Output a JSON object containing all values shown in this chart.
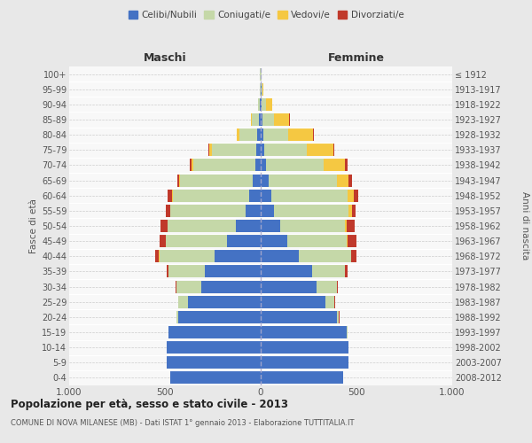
{
  "age_groups": [
    "0-4",
    "5-9",
    "10-14",
    "15-19",
    "20-24",
    "25-29",
    "30-34",
    "35-39",
    "40-44",
    "45-49",
    "50-54",
    "55-59",
    "60-64",
    "65-69",
    "70-74",
    "75-79",
    "80-84",
    "85-89",
    "90-94",
    "95-99",
    "100+"
  ],
  "birth_years": [
    "2008-2012",
    "2003-2007",
    "1998-2002",
    "1993-1997",
    "1988-1992",
    "1983-1987",
    "1978-1982",
    "1973-1977",
    "1968-1972",
    "1963-1967",
    "1958-1962",
    "1953-1957",
    "1948-1952",
    "1943-1947",
    "1938-1942",
    "1933-1937",
    "1928-1932",
    "1923-1927",
    "1918-1922",
    "1913-1917",
    "≤ 1912"
  ],
  "male": {
    "celibi": [
      470,
      490,
      490,
      480,
      430,
      380,
      310,
      290,
      240,
      175,
      130,
      80,
      60,
      40,
      30,
      25,
      18,
      8,
      4,
      2,
      2
    ],
    "coniugati": [
      0,
      0,
      0,
      2,
      10,
      50,
      130,
      190,
      290,
      320,
      355,
      390,
      400,
      380,
      320,
      230,
      95,
      40,
      8,
      2,
      2
    ],
    "vedovi": [
      0,
      0,
      0,
      0,
      0,
      0,
      0,
      0,
      2,
      2,
      3,
      4,
      4,
      5,
      10,
      15,
      10,
      5,
      2,
      0,
      0
    ],
    "divorziati": [
      0,
      0,
      0,
      0,
      2,
      2,
      5,
      10,
      20,
      30,
      35,
      22,
      20,
      12,
      10,
      5,
      4,
      0,
      0,
      0,
      0
    ]
  },
  "female": {
    "nubili": [
      430,
      460,
      460,
      450,
      400,
      340,
      290,
      270,
      200,
      140,
      100,
      70,
      55,
      40,
      30,
      20,
      15,
      10,
      5,
      3,
      2
    ],
    "coniugate": [
      0,
      0,
      0,
      2,
      8,
      45,
      110,
      170,
      270,
      310,
      340,
      390,
      400,
      360,
      300,
      220,
      130,
      60,
      25,
      4,
      2
    ],
    "vedove": [
      0,
      0,
      0,
      0,
      0,
      0,
      0,
      0,
      2,
      4,
      10,
      15,
      30,
      60,
      110,
      140,
      130,
      80,
      30,
      5,
      2
    ],
    "divorziate": [
      0,
      0,
      0,
      0,
      2,
      2,
      5,
      15,
      30,
      45,
      40,
      22,
      25,
      15,
      12,
      6,
      4,
      2,
      0,
      0,
      0
    ]
  },
  "colors": {
    "celibi_nubili": "#4472C4",
    "coniugati": "#C5D8A8",
    "vedovi": "#F5C842",
    "divorziati": "#C0392B"
  },
  "xlim": 1000,
  "title": "Popolazione per età, sesso e stato civile - 2013",
  "subtitle": "COMUNE DI NOVA MILANESE (MB) - Dati ISTAT 1° gennaio 2013 - Elaborazione TUTTITALIA.IT",
  "ylabel_left": "Fasce di età",
  "ylabel_right": "Anni di nascita",
  "xlabel_left": "Maschi",
  "xlabel_right": "Femmine",
  "legend_labels": [
    "Celibi/Nubili",
    "Coniugati/e",
    "Vedovi/e",
    "Divorziati/e"
  ],
  "bg_color": "#e8e8e8",
  "plot_bg_color": "#f8f8f8",
  "xtick_labels": [
    "1.000",
    "500",
    "0",
    "500",
    "1.000"
  ],
  "xtick_positions": [
    -1000,
    -500,
    0,
    500,
    1000
  ]
}
